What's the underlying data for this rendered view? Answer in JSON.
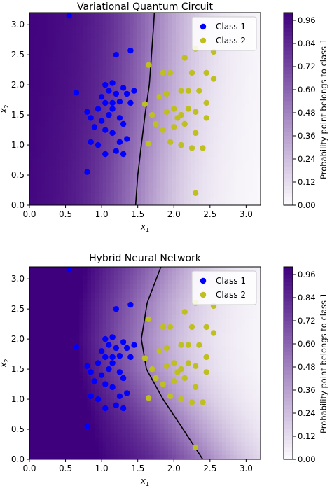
{
  "chart_data": [
    {
      "type": "scatter",
      "title": "Variational Quantum Circuit",
      "xlabel": "x",
      "xlabel_sub": "1",
      "ylabel": "x",
      "ylabel_sub": "2",
      "xlim": [
        0,
        3.2
      ],
      "ylim": [
        0,
        3.2
      ],
      "xticks": [
        "0.0",
        "0.5",
        "1.0",
        "1.5",
        "2.0",
        "2.5",
        "3.0"
      ],
      "yticks": [
        "0.0",
        "0.5",
        "1.0",
        "1.5",
        "2.0",
        "2.5",
        "3.0"
      ],
      "background": "filled contour of probability point belongs to class 1 (dark purple = 1, white = 0)",
      "decision_boundary": [
        [
          1.47,
          0.0
        ],
        [
          1.5,
          0.5
        ],
        [
          1.55,
          1.0
        ],
        [
          1.6,
          1.5
        ],
        [
          1.66,
          2.0
        ],
        [
          1.69,
          2.5
        ],
        [
          1.72,
          3.0
        ],
        [
          1.73,
          3.2
        ]
      ],
      "legend": {
        "position": "top-right",
        "entries": [
          "Class 1",
          "Class 2"
        ]
      },
      "colorbar": {
        "label": "Probability point belongs to class 1",
        "min": 0.0,
        "max": 1.0,
        "ticks": [
          "0.00",
          "0.12",
          "0.24",
          "0.36",
          "0.48",
          "0.60",
          "0.72",
          "0.84",
          "0.96"
        ]
      },
      "series": [
        {
          "name": "Class 1",
          "color": "#0000ff",
          "points": [
            [
              0.55,
              3.15
            ],
            [
              1.2,
              2.5
            ],
            [
              1.4,
              2.57
            ],
            [
              0.65,
              1.87
            ],
            [
              1.05,
              2.0
            ],
            [
              1.15,
              2.03
            ],
            [
              1.0,
              1.8
            ],
            [
              1.1,
              1.9
            ],
            [
              1.2,
              1.85
            ],
            [
              1.3,
              1.95
            ],
            [
              1.35,
              1.85
            ],
            [
              0.95,
              1.6
            ],
            [
              1.05,
              1.7
            ],
            [
              1.15,
              1.7
            ],
            [
              1.25,
              1.72
            ],
            [
              0.85,
              1.45
            ],
            [
              0.9,
              1.3
            ],
            [
              1.0,
              1.4
            ],
            [
              1.1,
              1.5
            ],
            [
              1.15,
              1.6
            ],
            [
              1.25,
              1.45
            ],
            [
              1.3,
              1.35
            ],
            [
              1.05,
              1.25
            ],
            [
              1.15,
              1.2
            ],
            [
              1.25,
              1.05
            ],
            [
              1.35,
              1.1
            ],
            [
              0.85,
              1.05
            ],
            [
              0.95,
              1.0
            ],
            [
              1.05,
              0.85
            ],
            [
              1.2,
              0.9
            ],
            [
              1.3,
              0.85
            ],
            [
              0.8,
              0.55
            ],
            [
              0.8,
              1.55
            ],
            [
              1.45,
              1.9
            ],
            [
              1.4,
              1.7
            ]
          ]
        },
        {
          "name": "Class 2",
          "color": "#bfbf20",
          "points": [
            [
              2.3,
              2.6
            ],
            [
              2.55,
              2.55
            ],
            [
              2.15,
              2.45
            ],
            [
              1.65,
              2.33
            ],
            [
              1.85,
              2.2
            ],
            [
              1.95,
              2.2
            ],
            [
              2.25,
              2.2
            ],
            [
              2.45,
              2.2
            ],
            [
              2.55,
              2.1
            ],
            [
              1.8,
              1.8
            ],
            [
              1.9,
              1.85
            ],
            [
              2.1,
              1.9
            ],
            [
              2.2,
              1.9
            ],
            [
              2.35,
              1.9
            ],
            [
              1.6,
              1.68
            ],
            [
              1.7,
              1.5
            ],
            [
              1.9,
              1.55
            ],
            [
              2.0,
              1.6
            ],
            [
              2.1,
              1.5
            ],
            [
              2.2,
              1.6
            ],
            [
              2.3,
              1.55
            ],
            [
              2.45,
              1.45
            ],
            [
              1.75,
              1.35
            ],
            [
              1.85,
              1.25
            ],
            [
              2.0,
              1.3
            ],
            [
              2.15,
              1.35
            ],
            [
              2.3,
              1.2
            ],
            [
              1.95,
              1.05
            ],
            [
              2.1,
              1.0
            ],
            [
              2.25,
              0.95
            ],
            [
              2.4,
              0.95
            ],
            [
              1.65,
              1.02
            ],
            [
              2.3,
              0.2
            ],
            [
              2.45,
              1.7
            ],
            [
              2.05,
              1.45
            ]
          ]
        }
      ]
    },
    {
      "type": "scatter",
      "title": "Hybrid Neural Network",
      "xlabel": "x",
      "xlabel_sub": "1",
      "ylabel": "x",
      "ylabel_sub": "2",
      "xlim": [
        0,
        3.2
      ],
      "ylim": [
        0,
        3.2
      ],
      "xticks": [
        "0.0",
        "0.5",
        "1.0",
        "1.5",
        "2.0",
        "2.5",
        "3.0"
      ],
      "yticks": [
        "0.0",
        "0.5",
        "1.0",
        "1.5",
        "2.0",
        "2.5",
        "3.0"
      ],
      "background": "filled contour of probability point belongs to class 1 (dark purple = 1, white = 0)",
      "decision_boundary": [
        [
          1.82,
          3.2
        ],
        [
          1.63,
          2.6
        ],
        [
          1.55,
          2.0
        ],
        [
          1.62,
          1.5
        ],
        [
          1.85,
          1.0
        ],
        [
          2.1,
          0.55
        ],
        [
          2.4,
          0.0
        ]
      ],
      "legend": {
        "position": "top-right",
        "entries": [
          "Class 1",
          "Class 2"
        ]
      },
      "colorbar": {
        "label": "Probability point belongs to class 1",
        "min": 0.0,
        "max": 1.0,
        "ticks": [
          "0.00",
          "0.12",
          "0.24",
          "0.36",
          "0.48",
          "0.60",
          "0.72",
          "0.84",
          "0.96"
        ]
      },
      "series": [
        {
          "name": "Class 1",
          "color": "#0000ff",
          "points": [
            [
              0.55,
              3.15
            ],
            [
              1.2,
              2.5
            ],
            [
              1.4,
              2.57
            ],
            [
              0.65,
              1.87
            ],
            [
              1.05,
              2.0
            ],
            [
              1.15,
              2.03
            ],
            [
              1.0,
              1.8
            ],
            [
              1.1,
              1.9
            ],
            [
              1.2,
              1.85
            ],
            [
              1.3,
              1.95
            ],
            [
              1.35,
              1.85
            ],
            [
              0.95,
              1.6
            ],
            [
              1.05,
              1.7
            ],
            [
              1.15,
              1.7
            ],
            [
              1.25,
              1.72
            ],
            [
              0.85,
              1.45
            ],
            [
              0.9,
              1.3
            ],
            [
              1.0,
              1.4
            ],
            [
              1.1,
              1.5
            ],
            [
              1.15,
              1.6
            ],
            [
              1.25,
              1.45
            ],
            [
              1.3,
              1.35
            ],
            [
              1.05,
              1.25
            ],
            [
              1.15,
              1.2
            ],
            [
              1.25,
              1.05
            ],
            [
              1.35,
              1.1
            ],
            [
              0.85,
              1.05
            ],
            [
              0.95,
              1.0
            ],
            [
              1.05,
              0.85
            ],
            [
              1.2,
              0.9
            ],
            [
              1.3,
              0.85
            ],
            [
              0.8,
              0.55
            ],
            [
              0.8,
              1.55
            ],
            [
              1.45,
              1.9
            ],
            [
              1.4,
              1.7
            ]
          ]
        },
        {
          "name": "Class 2",
          "color": "#bfbf20",
          "points": [
            [
              2.3,
              2.6
            ],
            [
              2.55,
              2.55
            ],
            [
              2.15,
              2.45
            ],
            [
              1.65,
              2.33
            ],
            [
              1.85,
              2.2
            ],
            [
              1.95,
              2.2
            ],
            [
              2.25,
              2.2
            ],
            [
              2.45,
              2.2
            ],
            [
              2.55,
              2.1
            ],
            [
              1.8,
              1.8
            ],
            [
              1.9,
              1.85
            ],
            [
              2.1,
              1.9
            ],
            [
              2.2,
              1.9
            ],
            [
              2.35,
              1.9
            ],
            [
              1.6,
              1.68
            ],
            [
              1.7,
              1.5
            ],
            [
              1.9,
              1.55
            ],
            [
              2.0,
              1.6
            ],
            [
              2.1,
              1.5
            ],
            [
              2.2,
              1.6
            ],
            [
              2.3,
              1.55
            ],
            [
              2.45,
              1.45
            ],
            [
              1.75,
              1.35
            ],
            [
              1.85,
              1.25
            ],
            [
              2.0,
              1.3
            ],
            [
              2.15,
              1.35
            ],
            [
              2.3,
              1.2
            ],
            [
              1.95,
              1.05
            ],
            [
              2.1,
              1.0
            ],
            [
              2.25,
              0.95
            ],
            [
              2.4,
              0.95
            ],
            [
              1.65,
              1.02
            ],
            [
              2.3,
              0.2
            ],
            [
              2.45,
              1.7
            ],
            [
              2.05,
              1.45
            ]
          ]
        }
      ]
    }
  ],
  "colors": {
    "dark": "#3f007d",
    "light": "#fcfbfd",
    "boundary": "#000000"
  }
}
